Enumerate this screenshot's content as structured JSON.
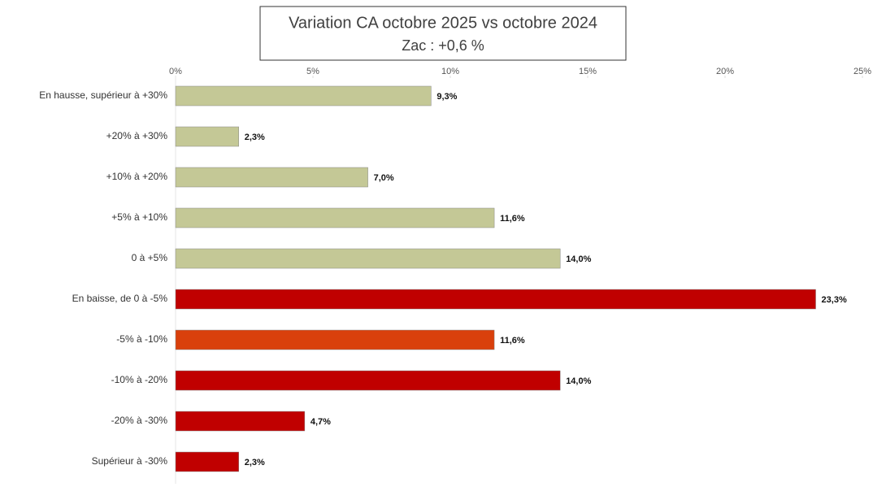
{
  "chart_data": {
    "type": "bar",
    "orientation": "horizontal",
    "title": "Variation CA octobre 2025 vs octobre 2024",
    "subtitle": "Zac : +0,6 %",
    "categories": [
      "En hausse, supérieur à +30%",
      "+20% à +30%",
      "+10% à +20%",
      "+5% à +10%",
      "0 à +5%",
      "En baisse, de 0 à -5%",
      "-5% à -10%",
      "-10% à -20%",
      "-20% à -30%",
      "Supérieur à -30%"
    ],
    "values": [
      9.3,
      2.3,
      7.0,
      11.6,
      14.0,
      23.3,
      11.6,
      14.0,
      4.7,
      2.3
    ],
    "value_labels": [
      "9,3%",
      "2,3%",
      "7,0%",
      "11,6%",
      "14,0%",
      "23,3%",
      "11,6%",
      "14,0%",
      "4,7%",
      "2,3%"
    ],
    "colors": [
      "#c4c896",
      "#c4c896",
      "#c4c896",
      "#c4c896",
      "#c4c896",
      "#c00000",
      "#d9400c",
      "#c00000",
      "#c00000",
      "#c00000"
    ],
    "xlim": [
      0,
      25
    ],
    "xticks": [
      {
        "value": 0,
        "label": "0%"
      },
      {
        "value": 5,
        "label": "5%"
      },
      {
        "value": 10,
        "label": "10%"
      },
      {
        "value": 15,
        "label": "15%"
      },
      {
        "value": 20,
        "label": "20%"
      },
      {
        "value": 25,
        "label": "25%"
      }
    ]
  }
}
